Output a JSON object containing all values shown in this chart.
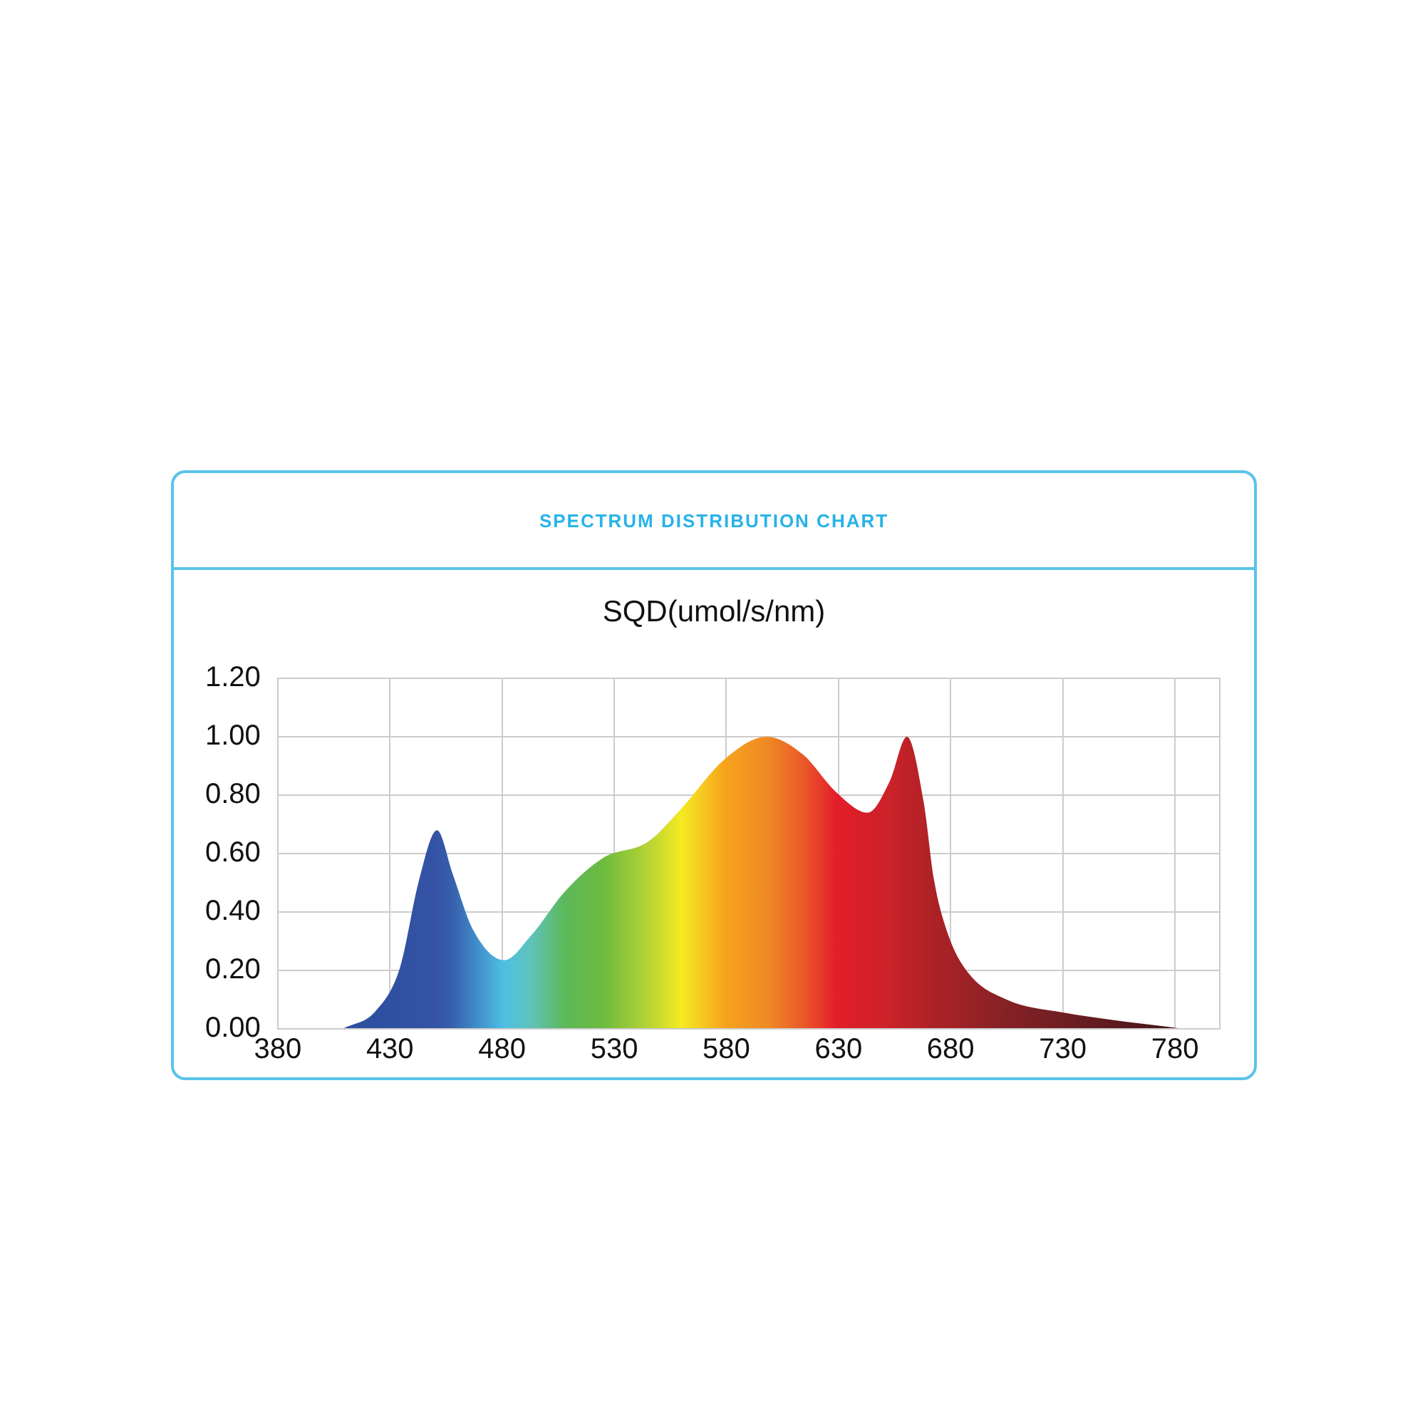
{
  "chart_data": {
    "type": "area",
    "title": "SPECTRUM DISTRIBUTION CHART",
    "subtitle": "SQD(umol/s/nm)",
    "x": [
      409,
      423.5,
      434.5,
      443,
      451,
      458,
      467,
      481,
      493,
      508,
      525,
      545,
      560,
      579.5,
      598,
      614,
      629,
      643,
      653,
      660.5,
      668,
      672.6,
      679,
      688,
      705,
      731,
      752.7,
      774,
      784
    ],
    "values": [
      0,
      0.06,
      0.21,
      0.51,
      0.68,
      0.53,
      0.34,
      0.235,
      0.32,
      0.47,
      0.585,
      0.64,
      0.755,
      0.925,
      1.0,
      0.94,
      0.81,
      0.74,
      0.85,
      1.0,
      0.775,
      0.51,
      0.32,
      0.19,
      0.1,
      0.055,
      0.03,
      0.01,
      0
    ],
    "colors": [
      "#2d4e9e",
      "#2f4fa0",
      "#3050a2",
      "#3352a4",
      "#3553a5",
      "#3760ad",
      "#3f85c5",
      "#4fc0e4",
      "#5fc3b8",
      "#5cb85a",
      "#6cbb3e",
      "#b5d334",
      "#f5ea22",
      "#f6a31d",
      "#f08a24",
      "#ea5a28",
      "#e31e2a",
      "#d42028",
      "#cc2229",
      "#bf2128",
      "#b42227",
      "#ab2226",
      "#a52226",
      "#9a2226",
      "#852126",
      "#6e1e22",
      "#5c1a1e",
      "#4a1519",
      "#401215"
    ],
    "xlim": [
      380,
      800
    ],
    "xticks": [
      380,
      430,
      480,
      530,
      580,
      630,
      680,
      730,
      780
    ],
    "ylim": [
      0,
      1.2
    ],
    "yticks": [
      {
        "value": 0,
        "label": "0.00"
      },
      {
        "value": 0.2,
        "label": "0.20"
      },
      {
        "value": 0.4,
        "label": "0.40"
      },
      {
        "value": 0.6,
        "label": "0.60"
      },
      {
        "value": 0.8,
        "label": "0.80"
      },
      {
        "value": 1.0,
        "label": "1.00"
      },
      {
        "value": 1.2,
        "label": "1.20"
      }
    ],
    "grid": true,
    "legend": false
  }
}
